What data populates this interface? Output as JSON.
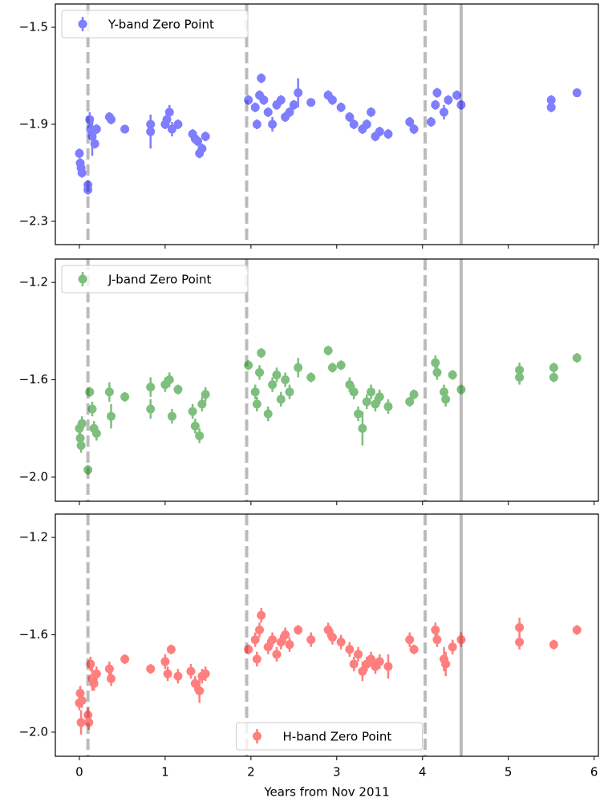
{
  "chart_data": [
    {
      "type": "errorbar",
      "legend": "upper left",
      "alpha": 0.5,
      "show_xticklabels": false,
      "xlim": [
        -0.28,
        6.05
      ],
      "xticks": [
        0,
        1,
        2,
        3,
        4,
        5,
        6
      ],
      "ylim": [
        -2.396,
        -1.404
      ],
      "yticks": [
        {
          "value": -1.5,
          "label": "−1.5"
        },
        {
          "value": -1.9,
          "label": "−1.9"
        },
        {
          "value": -2.3,
          "label": "−2.3"
        }
      ],
      "vlines": [
        {
          "x": 0.1,
          "style": "dashed"
        },
        {
          "x": 1.95,
          "style": "dashed"
        },
        {
          "x": 4.03,
          "style": "dashed"
        },
        {
          "x": 4.45,
          "style": "solid"
        }
      ],
      "vline_color": "#bbbbbb",
      "series": [
        {
          "name": "Y-band Zero Point",
          "color": "#0000ff",
          "x": [
            0.0,
            0.01,
            0.02,
            0.03,
            0.1,
            0.1,
            0.12,
            0.13,
            0.15,
            0.18,
            0.2,
            0.35,
            0.37,
            0.53,
            0.83,
            0.83,
            1.0,
            1.02,
            1.05,
            1.08,
            1.15,
            1.32,
            1.35,
            1.38,
            1.4,
            1.43,
            1.47,
            1.97,
            2.05,
            2.07,
            2.1,
            2.12,
            2.15,
            2.2,
            2.25,
            2.3,
            2.35,
            2.4,
            2.45,
            2.5,
            2.55,
            2.7,
            2.9,
            2.95,
            3.05,
            3.15,
            3.2,
            3.3,
            3.35,
            3.4,
            3.45,
            3.5,
            3.6,
            3.85,
            3.9,
            4.1,
            4.15,
            4.17,
            4.25,
            4.3,
            4.4,
            4.45,
            5.5,
            5.5,
            5.8
          ],
          "values": [
            -2.02,
            -2.06,
            -2.08,
            -2.1,
            -2.15,
            -2.17,
            -1.88,
            -1.92,
            -1.95,
            -1.98,
            -1.92,
            -1.87,
            -1.88,
            -1.92,
            -1.9,
            -1.93,
            -1.9,
            -1.88,
            -1.85,
            -1.92,
            -1.9,
            -1.94,
            -1.96,
            -1.97,
            -2.02,
            -2.0,
            -1.95,
            -1.8,
            -1.83,
            -1.9,
            -1.78,
            -1.71,
            -1.8,
            -1.85,
            -1.9,
            -1.82,
            -1.8,
            -1.87,
            -1.85,
            -1.82,
            -1.77,
            -1.81,
            -1.78,
            -1.8,
            -1.83,
            -1.87,
            -1.9,
            -1.92,
            -1.9,
            -1.85,
            -1.95,
            -1.93,
            -1.94,
            -1.89,
            -1.92,
            -1.89,
            -1.82,
            -1.77,
            -1.85,
            -1.8,
            -1.78,
            -1.82,
            -1.8,
            -1.83,
            -1.77
          ],
          "errors": [
            0.02,
            0.02,
            0.02,
            0.02,
            0.02,
            0.02,
            0.03,
            0.03,
            0.08,
            0.02,
            0.02,
            0.02,
            0.02,
            0.01,
            0.02,
            0.07,
            0.02,
            0.02,
            0.03,
            0.03,
            0.02,
            0.02,
            0.02,
            0.02,
            0.02,
            0.02,
            0.02,
            0.02,
            0.02,
            0.02,
            0.02,
            0.02,
            0.02,
            0.02,
            0.03,
            0.02,
            0.02,
            0.02,
            0.02,
            0.02,
            0.06,
            0.01,
            0.02,
            0.02,
            0.02,
            0.02,
            0.02,
            0.02,
            0.02,
            0.02,
            0.02,
            0.02,
            0.02,
            0.02,
            0.02,
            0.02,
            0.02,
            0.02,
            0.03,
            0.02,
            0.02,
            0.02,
            0.02,
            0.02,
            0.01
          ]
        }
      ]
    },
    {
      "type": "errorbar",
      "legend": "upper left",
      "alpha": 0.5,
      "show_xticklabels": false,
      "xlim": [
        -0.28,
        6.05
      ],
      "xticks": [
        0,
        1,
        2,
        3,
        4,
        5,
        6
      ],
      "ylim": [
        -2.099,
        -1.104
      ],
      "yticks": [
        {
          "value": -1.2,
          "label": "−1.2"
        },
        {
          "value": -1.6,
          "label": "−1.6"
        },
        {
          "value": -2.0,
          "label": "−2.0"
        }
      ],
      "vlines": [
        {
          "x": 0.1,
          "style": "dashed"
        },
        {
          "x": 1.95,
          "style": "dashed"
        },
        {
          "x": 4.03,
          "style": "dashed"
        },
        {
          "x": 4.45,
          "style": "solid"
        }
      ],
      "vline_color": "#bbbbbb",
      "series": [
        {
          "name": "J-band Zero Point",
          "color": "#008000",
          "x": [
            0.0,
            0.01,
            0.02,
            0.03,
            0.1,
            0.12,
            0.15,
            0.17,
            0.2,
            0.35,
            0.37,
            0.53,
            0.83,
            0.83,
            1.0,
            1.05,
            1.08,
            1.15,
            1.32,
            1.35,
            1.4,
            1.43,
            1.47,
            1.97,
            2.05,
            2.07,
            2.1,
            2.12,
            2.2,
            2.25,
            2.3,
            2.35,
            2.4,
            2.45,
            2.55,
            2.7,
            2.9,
            2.95,
            3.05,
            3.15,
            3.2,
            3.25,
            3.3,
            3.35,
            3.4,
            3.45,
            3.5,
            3.6,
            3.85,
            3.9,
            4.15,
            4.17,
            4.25,
            4.27,
            4.35,
            4.45,
            5.13,
            5.13,
            5.53,
            5.53,
            5.8
          ],
          "values": [
            -1.8,
            -1.84,
            -1.87,
            -1.78,
            -1.97,
            -1.65,
            -1.72,
            -1.8,
            -1.82,
            -1.65,
            -1.75,
            -1.67,
            -1.63,
            -1.72,
            -1.62,
            -1.6,
            -1.75,
            -1.64,
            -1.73,
            -1.79,
            -1.83,
            -1.7,
            -1.66,
            -1.54,
            -1.65,
            -1.7,
            -1.57,
            -1.49,
            -1.74,
            -1.62,
            -1.58,
            -1.68,
            -1.6,
            -1.65,
            -1.55,
            -1.59,
            -1.48,
            -1.55,
            -1.54,
            -1.62,
            -1.65,
            -1.74,
            -1.8,
            -1.69,
            -1.65,
            -1.7,
            -1.67,
            -1.71,
            -1.69,
            -1.66,
            -1.53,
            -1.57,
            -1.65,
            -1.68,
            -1.58,
            -1.64,
            -1.56,
            -1.59,
            -1.55,
            -1.59,
            -1.51
          ],
          "errors": [
            0.03,
            0.03,
            0.03,
            0.03,
            0.02,
            0.02,
            0.03,
            0.03,
            0.03,
            0.04,
            0.05,
            0.02,
            0.04,
            0.04,
            0.03,
            0.03,
            0.03,
            0.02,
            0.03,
            0.03,
            0.03,
            0.03,
            0.03,
            0.02,
            0.03,
            0.03,
            0.03,
            0.02,
            0.03,
            0.03,
            0.03,
            0.03,
            0.03,
            0.03,
            0.04,
            0.02,
            0.02,
            0.02,
            0.02,
            0.03,
            0.03,
            0.03,
            0.07,
            0.03,
            0.03,
            0.03,
            0.03,
            0.03,
            0.02,
            0.02,
            0.03,
            0.03,
            0.03,
            0.03,
            0.02,
            0.02,
            0.03,
            0.03,
            0.02,
            0.02,
            0.02
          ]
        }
      ]
    },
    {
      "type": "errorbar",
      "legend": "lower center",
      "alpha": 0.5,
      "show_xticklabels": true,
      "xlabel": "Years from Nov 2011",
      "xlim": [
        -0.28,
        6.05
      ],
      "xticks": [
        0,
        1,
        2,
        3,
        4,
        5,
        6
      ],
      "ylim": [
        -2.099,
        -1.104
      ],
      "yticks": [
        {
          "value": -1.2,
          "label": "−1.2"
        },
        {
          "value": -1.6,
          "label": "−1.6"
        },
        {
          "value": -2.0,
          "label": "−2.0"
        }
      ],
      "vlines": [
        {
          "x": 0.1,
          "style": "dashed"
        },
        {
          "x": 1.95,
          "style": "dashed"
        },
        {
          "x": 4.03,
          "style": "dashed"
        },
        {
          "x": 4.45,
          "style": "solid"
        }
      ],
      "vline_color": "#bbbbbb",
      "series": [
        {
          "name": "H-band Zero Point",
          "color": "#ff0000",
          "x": [
            0.0,
            0.01,
            0.02,
            0.03,
            0.1,
            0.11,
            0.13,
            0.15,
            0.17,
            0.2,
            0.35,
            0.37,
            0.53,
            0.83,
            1.0,
            1.03,
            1.07,
            1.15,
            1.3,
            1.35,
            1.4,
            1.43,
            1.47,
            1.97,
            2.05,
            2.07,
            2.1,
            2.12,
            2.2,
            2.25,
            2.3,
            2.35,
            2.4,
            2.45,
            2.55,
            2.7,
            2.9,
            2.95,
            3.05,
            3.15,
            3.2,
            3.25,
            3.3,
            3.35,
            3.4,
            3.45,
            3.5,
            3.6,
            3.85,
            3.9,
            4.15,
            4.17,
            4.25,
            4.27,
            4.35,
            4.45,
            5.13,
            5.13,
            5.53,
            5.8
          ],
          "values": [
            -1.88,
            -1.84,
            -1.96,
            -1.87,
            -1.93,
            -1.96,
            -1.72,
            -1.78,
            -1.8,
            -1.76,
            -1.74,
            -1.78,
            -1.7,
            -1.74,
            -1.71,
            -1.76,
            -1.66,
            -1.77,
            -1.75,
            -1.8,
            -1.83,
            -1.77,
            -1.76,
            -1.66,
            -1.62,
            -1.7,
            -1.58,
            -1.52,
            -1.65,
            -1.62,
            -1.68,
            -1.63,
            -1.6,
            -1.64,
            -1.58,
            -1.62,
            -1.58,
            -1.61,
            -1.63,
            -1.66,
            -1.72,
            -1.68,
            -1.75,
            -1.72,
            -1.7,
            -1.73,
            -1.71,
            -1.73,
            -1.62,
            -1.66,
            -1.58,
            -1.62,
            -1.7,
            -1.72,
            -1.65,
            -1.62,
            -1.57,
            -1.63,
            -1.64,
            -1.58
          ],
          "errors": [
            0.03,
            0.03,
            0.05,
            0.03,
            0.03,
            0.03,
            0.03,
            0.05,
            0.03,
            0.03,
            0.03,
            0.03,
            0.02,
            0.02,
            0.03,
            0.03,
            0.02,
            0.03,
            0.03,
            0.03,
            0.05,
            0.03,
            0.03,
            0.02,
            0.03,
            0.03,
            0.03,
            0.03,
            0.03,
            0.03,
            0.03,
            0.03,
            0.03,
            0.03,
            0.02,
            0.03,
            0.03,
            0.03,
            0.03,
            0.03,
            0.03,
            0.03,
            0.04,
            0.03,
            0.03,
            0.03,
            0.03,
            0.05,
            0.03,
            0.02,
            0.03,
            0.03,
            0.05,
            0.05,
            0.03,
            0.03,
            0.04,
            0.03,
            0.02,
            0.02
          ]
        }
      ]
    }
  ]
}
